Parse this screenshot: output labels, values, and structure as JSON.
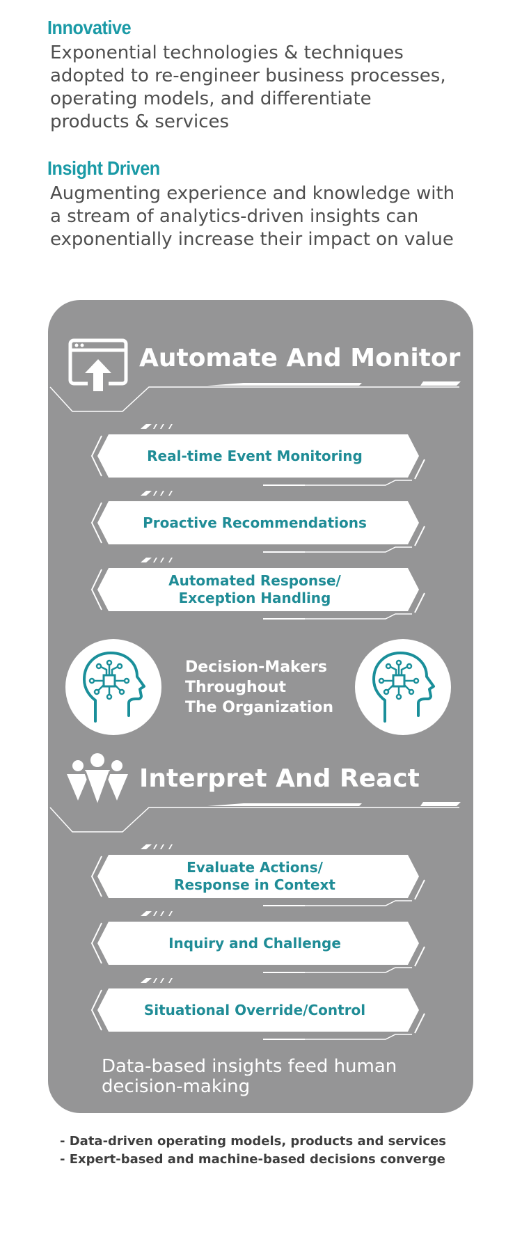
{
  "intro": [
    {
      "title": "Innovative",
      "lines": [
        "Exponential technologies & techniques",
        "adopted to re-engineer business processes,",
        "operating models, and differentiate",
        "products & services"
      ]
    },
    {
      "title": "Insight Driven",
      "lines": [
        "Augmenting experience and knowledge with",
        "a stream of analytics-driven insights can",
        "exponentially increase their impact on value"
      ]
    }
  ],
  "panel": {
    "colors": {
      "panel": "#959596",
      "accent": "#1a9aa6",
      "pill_text": "#1f8c96",
      "pill": "#ffffff"
    },
    "automate": {
      "title": "Automate And Monitor",
      "icon": "browser-upload-icon",
      "items": [
        {
          "lines": [
            "Real-time Event Monitoring"
          ]
        },
        {
          "lines": [
            "Proactive Recommendations"
          ]
        },
        {
          "lines": [
            "Automated Response/",
            "Exception Handling"
          ]
        }
      ]
    },
    "decision_makers": {
      "lines": [
        "Decision-Makers",
        "Throughout",
        "The Organization"
      ],
      "icon": "ai-head-icon"
    },
    "interpret": {
      "title": "Interpret And React",
      "icon": "people-group-icon",
      "items": [
        {
          "lines": [
            "Evaluate Actions/",
            "Response in Context"
          ]
        },
        {
          "lines": [
            "Inquiry and Challenge"
          ]
        },
        {
          "lines": [
            "Situational Override/Control"
          ]
        }
      ]
    },
    "footer_lines": [
      "Data-based insights feed human",
      "decision-making"
    ]
  },
  "bullets": [
    "- Data-driven operating models, products and services",
    "- Expert-based and machine-based decisions converge"
  ]
}
